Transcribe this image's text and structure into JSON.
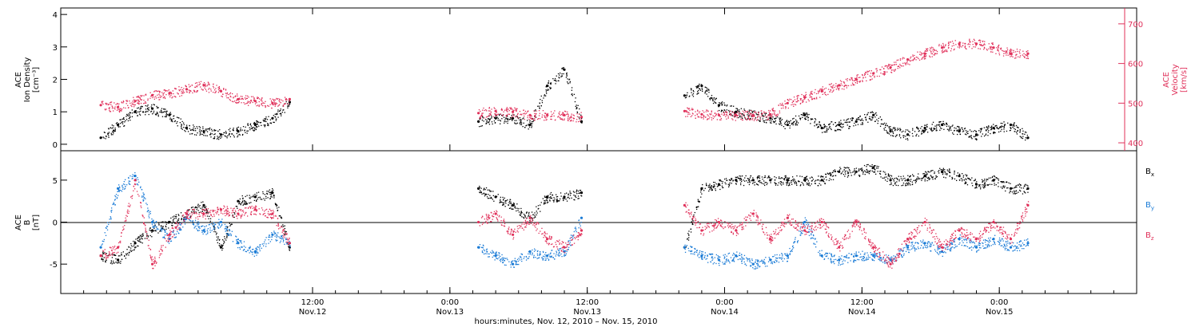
{
  "colors": {
    "black": "#000000",
    "blue": "#1a7bd6",
    "red": "#e0305a"
  },
  "chart_data": [
    {
      "type": "scatter",
      "panel": "top",
      "left_axis_label": [
        "ACE",
        "Ion Density",
        "[cm⁻³]"
      ],
      "right_axis_label": [
        "ACE",
        "Velocity",
        "[km/s]"
      ],
      "ylim_left": [
        -0.2,
        4.2
      ],
      "ylim_right": [
        380,
        740
      ],
      "left_ticks": [
        0,
        1,
        2,
        3,
        4
      ],
      "right_ticks": [
        400,
        500,
        600,
        700
      ],
      "series": [
        {
          "axis": "left",
          "color": "black",
          "segments": [
            {
              "x": [
                -18.5,
                -17,
                -15.5,
                -14,
                -12.5,
                -11,
                -9.5,
                -8,
                -6.5,
                -5,
                -3.5,
                -2
              ],
              "y": [
                0.2,
                0.6,
                1.0,
                1.1,
                0.9,
                0.5,
                0.4,
                0.3,
                0.4,
                0.6,
                0.8,
                1.3
              ]
            },
            {
              "x": [
                14.5,
                16,
                17.5,
                19,
                20.5,
                22,
                23.5
              ],
              "y": [
                0.7,
                0.8,
                0.8,
                0.6,
                1.8,
                2.3,
                0.7
              ]
            },
            {
              "x": [
                32.5,
                34,
                35.5,
                37,
                38.5,
                40,
                41.5,
                43,
                44.5,
                46,
                47.5,
                49,
                50.5,
                52,
                53.5,
                55,
                56.5,
                58,
                59.5,
                61,
                62.5
              ],
              "y": [
                1.5,
                1.8,
                1.2,
                1.0,
                0.9,
                0.8,
                0.6,
                0.9,
                0.5,
                0.6,
                0.7,
                0.9,
                0.4,
                0.3,
                0.5,
                0.6,
                0.4,
                0.3,
                0.5,
                0.6,
                0.2
              ]
            }
          ]
        },
        {
          "axis": "right",
          "color": "red",
          "segments": [
            {
              "x": [
                -18.5,
                -17,
                -15.5,
                -14,
                -12.5,
                -11,
                -9.5,
                -8,
                -6.5,
                -5,
                -3.5,
                -2
              ],
              "y": [
                495,
                490,
                505,
                520,
                525,
                535,
                545,
                530,
                510,
                505,
                500,
                510
              ]
            },
            {
              "x": [
                14.5,
                16,
                17.5,
                19,
                20.5,
                22,
                23.5
              ],
              "y": [
                475,
                480,
                478,
                470,
                470,
                470,
                465
              ]
            },
            {
              "x": [
                32.5,
                34,
                35.5,
                37,
                38.5,
                40,
                41.5,
                43,
                44.5,
                46,
                47.5,
                49,
                50.5,
                52,
                53.5,
                55,
                56.5,
                58,
                59.5,
                61,
                62.5
              ],
              "y": [
                480,
                472,
                470,
                470,
                470,
                472,
                500,
                515,
                530,
                545,
                560,
                575,
                590,
                610,
                625,
                640,
                650,
                650,
                640,
                625,
                625
              ]
            }
          ]
        }
      ]
    },
    {
      "type": "scatter",
      "panel": "bottom",
      "left_axis_label": [
        "ACE",
        "B",
        "[nT]"
      ],
      "ylim": [
        -8.5,
        8.5
      ],
      "ticks": [
        -5,
        0,
        5
      ],
      "legend": [
        "Bx",
        "By",
        "Bz"
      ],
      "series": [
        {
          "name": "Bx",
          "color": "black",
          "segments": [
            {
              "x": [
                -18.5,
                -17,
                -15.5,
                -14,
                -12.5,
                -11,
                -9.5,
                -8,
                -6.5,
                -5,
                -3.5,
                -2
              ],
              "y": [
                -4.0,
                -4.5,
                -2.5,
                -1.0,
                0.0,
                1.0,
                2.0,
                -3.0,
                2.5,
                3.0,
                3.5,
                -3.0
              ]
            },
            {
              "x": [
                14.5,
                16,
                17.5,
                19,
                20.5,
                22,
                23.5
              ],
              "y": [
                4.0,
                3.0,
                2.0,
                0.5,
                3.0,
                3.0,
                3.5
              ]
            },
            {
              "x": [
                32.5,
                34,
                35.5,
                37,
                38.5,
                40,
                41.5,
                43,
                44.5,
                46,
                47.5,
                49,
                50.5,
                52,
                53.5,
                55,
                56.5,
                58,
                59.5,
                61,
                62.5
              ],
              "y": [
                -3.0,
                4.0,
                4.5,
                5.0,
                5.0,
                5.0,
                5.0,
                5.0,
                5.0,
                6.0,
                6.0,
                6.5,
                5.0,
                5.0,
                5.5,
                6.0,
                5.5,
                4.5,
                5.0,
                4.0,
                4.0
              ]
            }
          ]
        },
        {
          "name": "By",
          "color": "blue",
          "segments": [
            {
              "x": [
                -18.5,
                -17,
                -15.5,
                -14,
                -12.5,
                -11,
                -9.5,
                -8,
                -6.5,
                -5,
                -3.5,
                -2
              ],
              "y": [
                -3.0,
                4.0,
                5.5,
                0.0,
                -2.0,
                0.5,
                -1.0,
                0.0,
                -2.5,
                -3.5,
                -1.5,
                -2.5
              ]
            },
            {
              "x": [
                14.5,
                16,
                17.5,
                19,
                20.5,
                22,
                23.5
              ],
              "y": [
                -3.0,
                -4.0,
                -5.0,
                -3.5,
                -4.0,
                -3.5,
                0.5
              ]
            },
            {
              "x": [
                32.5,
                34,
                35.5,
                37,
                38.5,
                40,
                41.5,
                43,
                44.5,
                46,
                47.5,
                49,
                50.5,
                52,
                53.5,
                55,
                56.5,
                58,
                59.5,
                61,
                62.5
              ],
              "y": [
                -3.0,
                -4.0,
                -4.5,
                -4.0,
                -5.0,
                -4.5,
                -4.0,
                0.0,
                -4.0,
                -4.5,
                -4.0,
                -4.0,
                -4.5,
                -3.0,
                -2.5,
                -3.5,
                -2.0,
                -3.0,
                -2.0,
                -3.0,
                -2.5
              ]
            }
          ]
        },
        {
          "name": "Bz",
          "color": "red",
          "segments": [
            {
              "x": [
                -18.5,
                -17,
                -15.5,
                -14,
                -12.5,
                -11,
                -9.5,
                -8,
                -6.5,
                -5,
                -3.5,
                -2
              ],
              "y": [
                -4.0,
                -3.0,
                5.0,
                -5.0,
                -1.5,
                1.0,
                1.0,
                1.5,
                1.0,
                1.5,
                1.0,
                -2.5
              ]
            },
            {
              "x": [
                14.5,
                16,
                17.5,
                19,
                20.5,
                22,
                23.5
              ],
              "y": [
                0.0,
                1.0,
                -1.5,
                0.5,
                -2.0,
                -3.0,
                -1.0
              ]
            },
            {
              "x": [
                32.5,
                34,
                35.5,
                37,
                38.5,
                40,
                41.5,
                43,
                44.5,
                46,
                47.5,
                49,
                50.5,
                52,
                53.5,
                55,
                56.5,
                58,
                59.5,
                61,
                62.5
              ],
              "y": [
                2.0,
                -1.0,
                0.0,
                -1.0,
                1.0,
                -2.0,
                0.5,
                -1.0,
                0.0,
                -3.0,
                0.0,
                -3.0,
                -5.0,
                -2.0,
                0.0,
                -3.0,
                -1.0,
                -2.0,
                0.0,
                -2.0,
                2.0
              ]
            }
          ]
        }
      ]
    }
  ],
  "time_axis": {
    "xlim": [
      -22,
      72
    ],
    "ticks": [
      {
        "t": 0,
        "time": "12:00",
        "date": "Nov.12"
      },
      {
        "t": 12,
        "time": "0:00",
        "date": "Nov.13"
      },
      {
        "t": 24,
        "time": "12:00",
        "date": "Nov.13"
      },
      {
        "t": 36,
        "time": "0:00",
        "date": "Nov.14"
      },
      {
        "t": 48,
        "time": "12:00",
        "date": "Nov.14"
      },
      {
        "t": 60,
        "time": "0:00",
        "date": "Nov.15"
      }
    ],
    "xlabel": "hours:minutes, Nov. 12, 2010 – Nov. 15, 2010"
  },
  "legend_labels": {
    "bx_main": "B",
    "bx_sub": "x",
    "by_main": "B",
    "by_sub": "y",
    "bz_main": "B",
    "bz_sub": "z"
  }
}
